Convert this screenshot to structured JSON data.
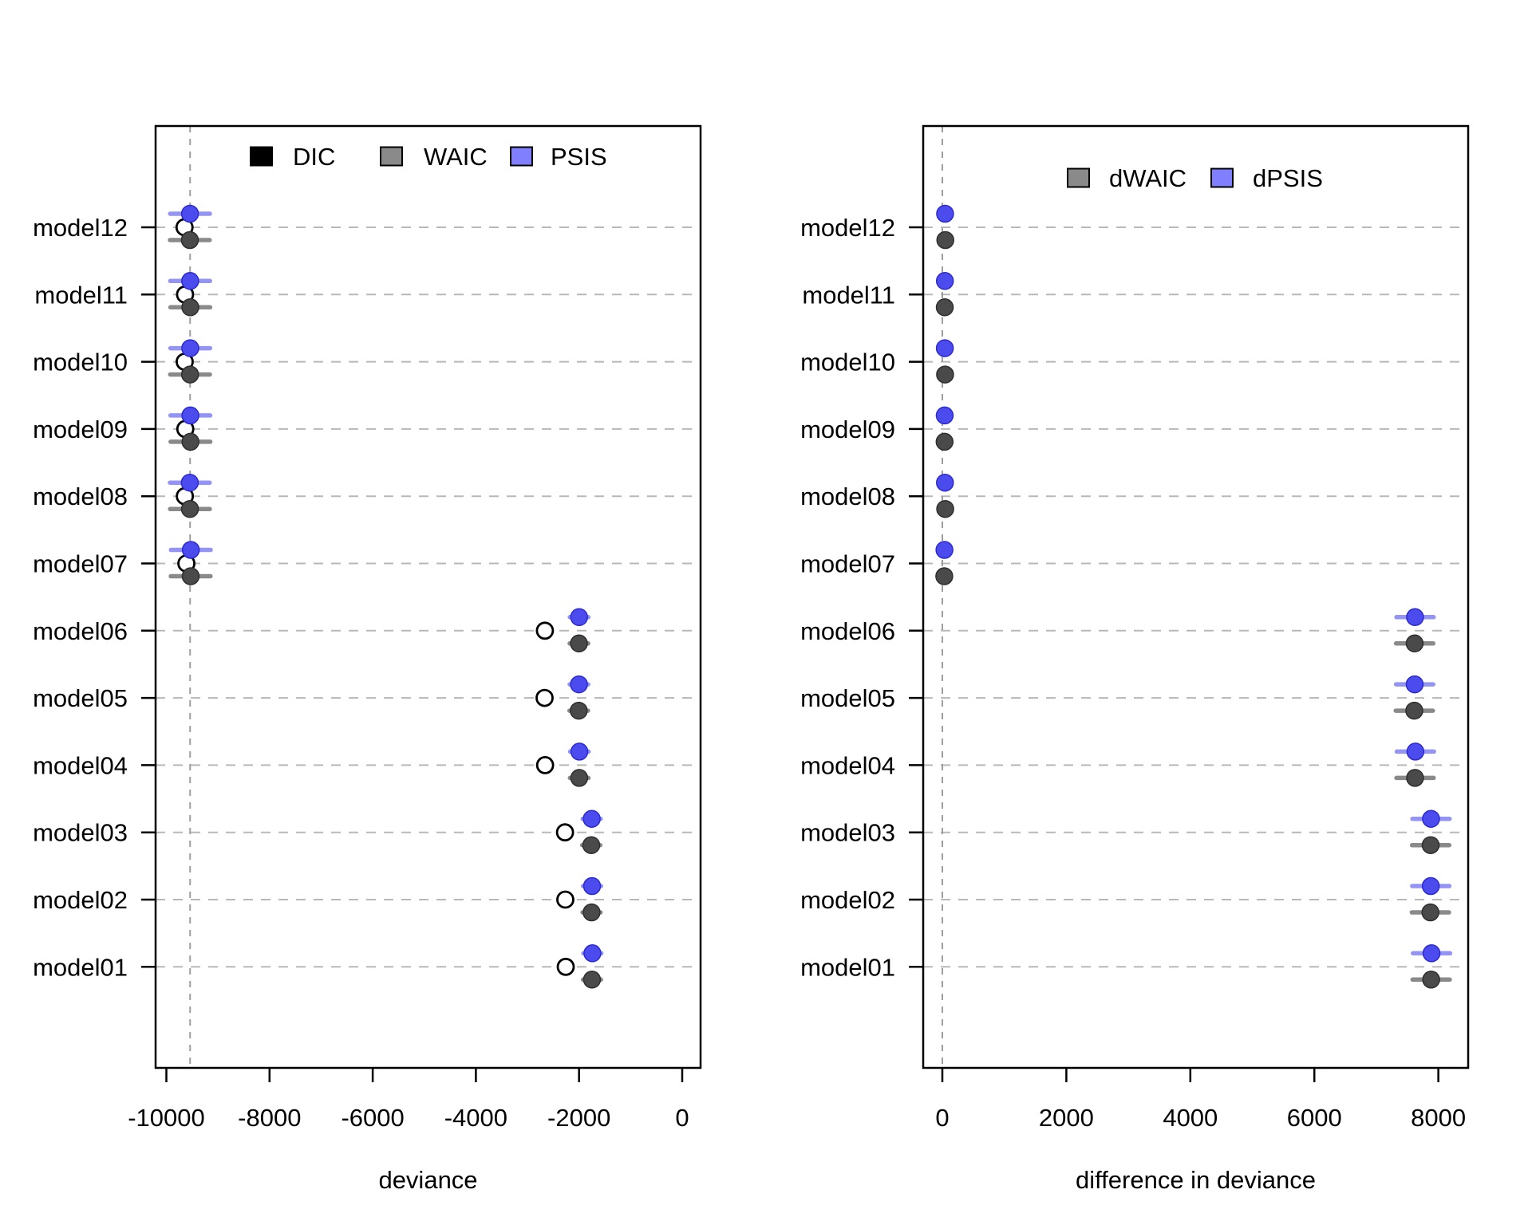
{
  "figure": {
    "background": "#ffffff",
    "description": "Model comparison dot chart with two panels"
  },
  "colors": {
    "axis": "#000000",
    "grid": "#b8b8b8",
    "vline": "#9e9e9e",
    "open_point_fill": "#ffffff",
    "open_point_stroke": "#000000",
    "gray_point": "#4a4a4a",
    "gray_point_stroke": "#2e2e2e",
    "gray_bar": "#8a8a8a",
    "blue_point": "#4b4bee",
    "blue_point_stroke": "#2a2ad0",
    "blue_bar": "#9494f5",
    "legend_gray": "#8a8a8a",
    "legend_blue": "#8080ff",
    "legend_black": "#000000"
  },
  "chart_data": [
    {
      "type": "scatter",
      "panel": "left",
      "title": "",
      "xlabel": "deviance",
      "ylabel": "",
      "xlim": [
        -10209,
        356
      ],
      "xticks": [
        -10000,
        -8000,
        -6000,
        -4000,
        -2000,
        0
      ],
      "xtick_labels": [
        "-10000",
        "-8000",
        "-6000",
        "-4000",
        "-2000",
        "0"
      ],
      "grid": "dashed-horizontal",
      "vline": -9540,
      "legend": {
        "position": "top",
        "items": [
          {
            "label": "DIC",
            "swatch": "legend_black"
          },
          {
            "label": "WAIC",
            "swatch": "legend_gray"
          },
          {
            "label": "PSIS",
            "swatch": "legend_blue"
          }
        ]
      },
      "categories": [
        "model12",
        "model11",
        "model10",
        "model09",
        "model08",
        "model07",
        "model06",
        "model05",
        "model04",
        "model03",
        "model02",
        "model01"
      ],
      "series": [
        {
          "name": "DIC",
          "marker": "open-circle",
          "row_offset": 0,
          "values": [
            -9648,
            -9638,
            -9645,
            -9633,
            -9642,
            -9612,
            -2662,
            -2668,
            -2658,
            -2272,
            -2266,
            -2258
          ],
          "se": [
            0,
            0,
            0,
            0,
            0,
            0,
            0,
            0,
            0,
            0,
            0,
            0
          ]
        },
        {
          "name": "WAIC",
          "marker": "filled-gray",
          "row_offset": 16,
          "values": [
            -9545,
            -9536,
            -9541,
            -9533,
            -9543,
            -9529,
            -2002,
            -2006,
            -1997,
            -1763,
            -1757,
            -1749
          ],
          "se": [
            385,
            385,
            385,
            385,
            385,
            385,
            180,
            180,
            180,
            175,
            175,
            175
          ]
        },
        {
          "name": "PSIS",
          "marker": "filled-blue",
          "row_offset": -17,
          "values": [
            -9542,
            -9539,
            -9537,
            -9535,
            -9546,
            -9526,
            -1999,
            -2002,
            -1994,
            -1754,
            -1748,
            -1741
          ],
          "se": [
            385,
            385,
            385,
            385,
            385,
            385,
            180,
            180,
            180,
            175,
            175,
            175
          ]
        }
      ]
    },
    {
      "type": "scatter",
      "panel": "right",
      "title": "",
      "xlabel": "difference in deviance",
      "ylabel": "",
      "xlim": [
        -309,
        8481
      ],
      "xticks": [
        0,
        2000,
        4000,
        6000,
        8000
      ],
      "xtick_labels": [
        "0",
        "2000",
        "4000",
        "6000",
        "8000"
      ],
      "grid": "dashed-horizontal",
      "vline": 0,
      "legend": {
        "position": "top",
        "items": [
          {
            "label": "dWAIC",
            "swatch": "legend_gray"
          },
          {
            "label": "dPSIS",
            "swatch": "legend_blue"
          }
        ]
      },
      "categories": [
        "model12",
        "model11",
        "model10",
        "model09",
        "model08",
        "model07",
        "model06",
        "model05",
        "model04",
        "model03",
        "model02",
        "model01"
      ],
      "series": [
        {
          "name": "dWAIC",
          "marker": "filled-gray",
          "row_offset": 16,
          "values": [
            48,
            39,
            44,
            36,
            46,
            31,
            7618,
            7612,
            7624,
            7876,
            7872,
            7884
          ],
          "se": [
            60,
            60,
            60,
            60,
            60,
            60,
            300,
            300,
            300,
            300,
            300,
            300
          ]
        },
        {
          "name": "dPSIS",
          "marker": "filled-blue",
          "row_offset": -17,
          "values": [
            44,
            41,
            40,
            38,
            42,
            34,
            7624,
            7618,
            7630,
            7882,
            7878,
            7890
          ],
          "se": [
            60,
            60,
            60,
            60,
            60,
            60,
            300,
            300,
            300,
            300,
            300,
            300
          ]
        }
      ]
    }
  ]
}
